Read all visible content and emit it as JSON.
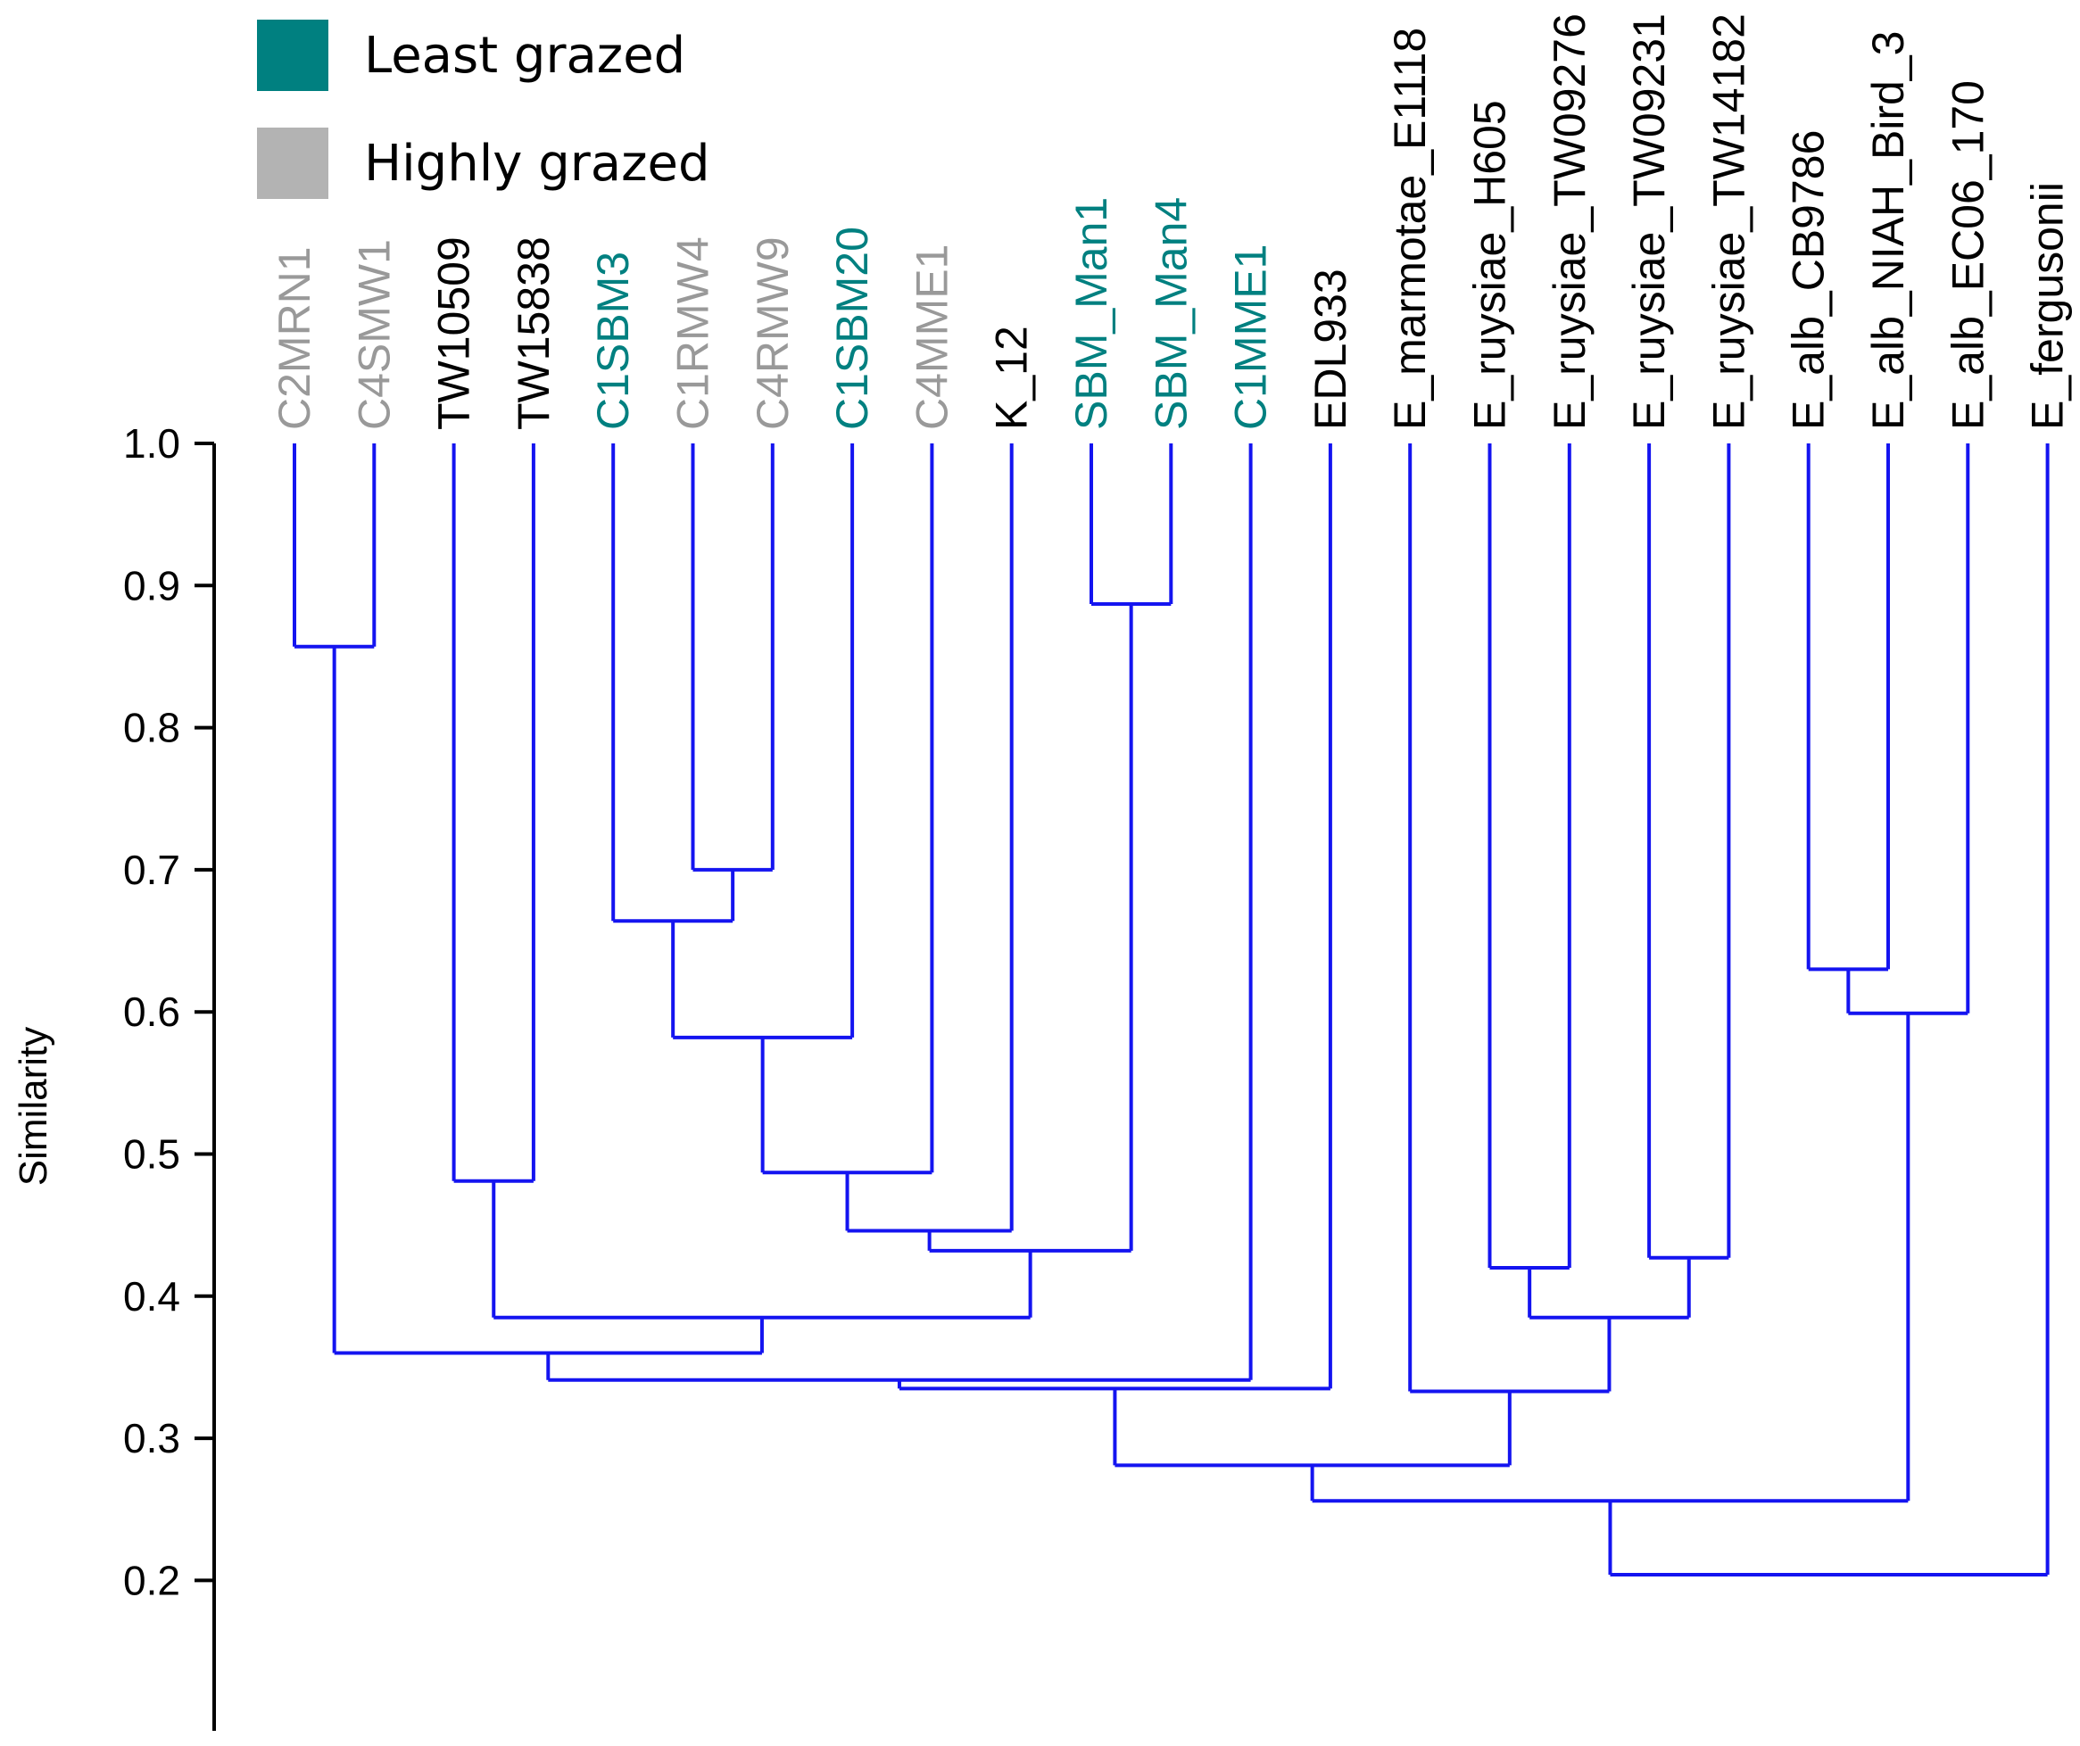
{
  "legend": [
    {
      "label": "Least grazed",
      "color": "#008080"
    },
    {
      "label": "Highly grazed",
      "color": "#b3b3b3"
    }
  ],
  "chart_data": {
    "type": "dendrogram",
    "title": "",
    "xlabel": "",
    "ylabel": "Similarity",
    "ylim": [
      0.13,
      1.0
    ],
    "yticks": [
      "1.0",
      "0.9",
      "0.8",
      "0.7",
      "0.6",
      "0.5",
      "0.4",
      "0.3",
      "0.2"
    ],
    "branch_color": "#1414f0",
    "leaves": [
      {
        "name": "C2MRN1",
        "group": "highly",
        "color": "#999999"
      },
      {
        "name": "C4SMW1",
        "group": "highly",
        "color": "#999999"
      },
      {
        "name": "TW10509",
        "group": "none",
        "color": "#000000"
      },
      {
        "name": "TW15838",
        "group": "none",
        "color": "#000000"
      },
      {
        "name": "C1SBM3",
        "group": "least",
        "color": "#008080"
      },
      {
        "name": "C1RMW4",
        "group": "highly",
        "color": "#999999"
      },
      {
        "name": "C4RMW9",
        "group": "highly",
        "color": "#999999"
      },
      {
        "name": "C1SBM20",
        "group": "least",
        "color": "#008080"
      },
      {
        "name": "C4MME1",
        "group": "highly",
        "color": "#999999"
      },
      {
        "name": "K_12",
        "group": "none",
        "color": "#000000"
      },
      {
        "name": "SBM_Man1",
        "group": "least",
        "color": "#008080"
      },
      {
        "name": "SBM_Man4",
        "group": "least",
        "color": "#008080"
      },
      {
        "name": "C1MME1",
        "group": "least",
        "color": "#008080"
      },
      {
        "name": "EDL933",
        "group": "none",
        "color": "#000000"
      },
      {
        "name": "E_marmotae_E1118",
        "group": "none",
        "color": "#000000"
      },
      {
        "name": "E_ruysiae_H605",
        "group": "none",
        "color": "#000000"
      },
      {
        "name": "E_ruysiae_TW09276",
        "group": "none",
        "color": "#000000"
      },
      {
        "name": "E_ruysiae_TW09231",
        "group": "none",
        "color": "#000000"
      },
      {
        "name": "E_ruysiae_TW14182",
        "group": "none",
        "color": "#000000"
      },
      {
        "name": "E_alb_CB9786",
        "group": "none",
        "color": "#000000"
      },
      {
        "name": "E_alb_NIAH_Bird_3",
        "group": "none",
        "color": "#000000"
      },
      {
        "name": "E_alb_EC06_170",
        "group": "none",
        "color": "#000000"
      },
      {
        "name": "E_fergusonii",
        "group": "none",
        "color": "#000000"
      }
    ],
    "merges": [
      {
        "id": "M1",
        "children": [
          "C2MRN1",
          "C4SMW1"
        ],
        "similarity": 0.857
      },
      {
        "id": "M2",
        "children": [
          "SBM_Man1",
          "SBM_Man4"
        ],
        "similarity": 0.887
      },
      {
        "id": "M3",
        "children": [
          "C1RMW4",
          "C4RMW9"
        ],
        "similarity": 0.7
      },
      {
        "id": "M4",
        "children": [
          "C1SBM3",
          "M3"
        ],
        "similarity": 0.664
      },
      {
        "id": "M5",
        "children": [
          "M4",
          "C1SBM20"
        ],
        "similarity": 0.582
      },
      {
        "id": "M6",
        "children": [
          "M5",
          "C4MME1"
        ],
        "similarity": 0.487
      },
      {
        "id": "M7",
        "children": [
          "M6",
          "K_12"
        ],
        "similarity": 0.446
      },
      {
        "id": "M8",
        "children": [
          "M7",
          "M2"
        ],
        "similarity": 0.432
      },
      {
        "id": "M9",
        "children": [
          "TW10509",
          "TW15838"
        ],
        "similarity": 0.481
      },
      {
        "id": "M10",
        "children": [
          "M9",
          "M8"
        ],
        "similarity": 0.385
      },
      {
        "id": "M11",
        "children": [
          "M1",
          "M10"
        ],
        "similarity": 0.36
      },
      {
        "id": "M12",
        "children": [
          "M11",
          "C1MME1"
        ],
        "similarity": 0.341
      },
      {
        "id": "M13",
        "children": [
          "M12",
          "EDL933"
        ],
        "similarity": 0.335
      },
      {
        "id": "M14",
        "children": [
          "E_ruysiae_H605",
          "E_ruysiae_TW09276"
        ],
        "similarity": 0.42
      },
      {
        "id": "M15",
        "children": [
          "E_ruysiae_TW09231",
          "E_ruysiae_TW14182"
        ],
        "similarity": 0.427
      },
      {
        "id": "M16",
        "children": [
          "M14",
          "M15"
        ],
        "similarity": 0.385
      },
      {
        "id": "M17",
        "children": [
          "E_marmotae_E1118",
          "M16"
        ],
        "similarity": 0.333
      },
      {
        "id": "M18",
        "children": [
          "M13",
          "M17"
        ],
        "similarity": 0.281
      },
      {
        "id": "M19",
        "children": [
          "E_alb_CB9786",
          "E_alb_NIAH_Bird_3"
        ],
        "similarity": 0.63
      },
      {
        "id": "M20",
        "children": [
          "M19",
          "E_alb_EC06_170"
        ],
        "similarity": 0.599
      },
      {
        "id": "M21",
        "children": [
          "M18",
          "M20"
        ],
        "similarity": 0.256
      },
      {
        "id": "M22",
        "children": [
          "M21",
          "E_fergusonii"
        ],
        "similarity": 0.204
      }
    ]
  }
}
